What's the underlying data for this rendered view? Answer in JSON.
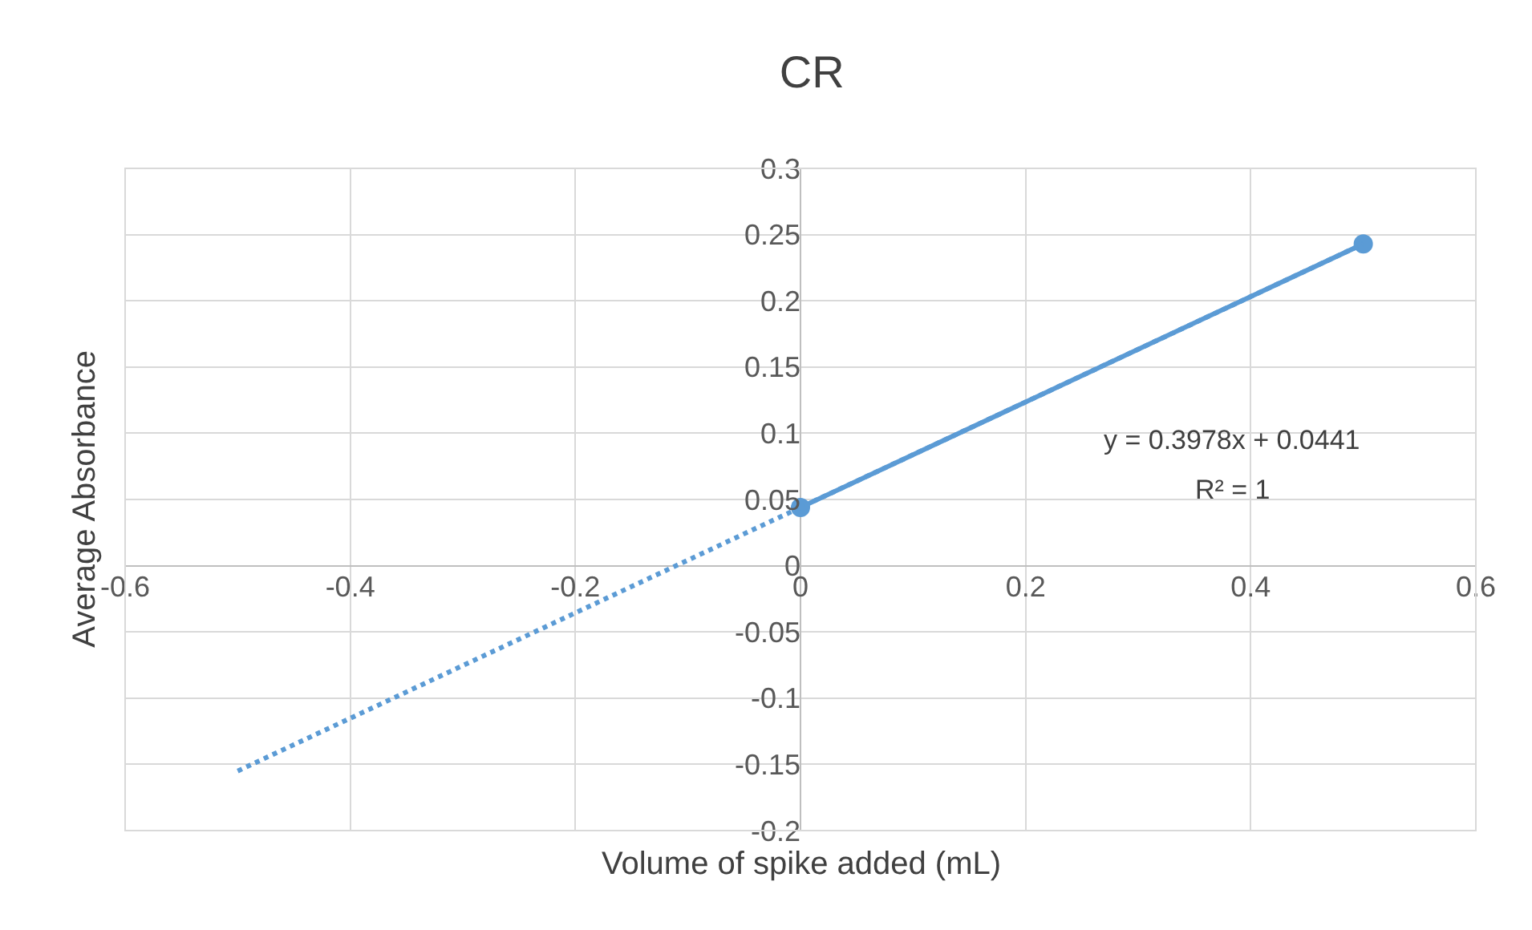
{
  "chart_data": {
    "type": "scatter",
    "title": "CR",
    "xlabel": "Volume of spike added (mL)",
    "ylabel": "Average Absorbance",
    "series": [
      {
        "type": "line",
        "color": "#5b9bd5",
        "x": [
          0,
          0.5
        ],
        "values": [
          0.044,
          0.243
        ],
        "marker": "circle",
        "line_style": "solid"
      },
      {
        "type": "line",
        "color": "#5b9bd5",
        "x": [
          -0.5,
          0.5
        ],
        "values": [
          -0.155,
          0.243
        ],
        "marker": "none",
        "line_style": "dotted"
      }
    ],
    "xlim": [
      -0.6,
      0.6
    ],
    "xticks": [
      -0.6,
      -0.4,
      -0.2,
      0,
      0.2,
      0.4,
      0.6
    ],
    "ylim": [
      -0.2,
      0.3
    ],
    "yticks": [
      -0.2,
      -0.15,
      -0.1,
      -0.05,
      0,
      0.05,
      0.1,
      0.15,
      0.2,
      0.25,
      0.3
    ],
    "grid": true,
    "annotations": [
      "y = 0.3978x + 0.0441",
      "R² = 1"
    ]
  }
}
